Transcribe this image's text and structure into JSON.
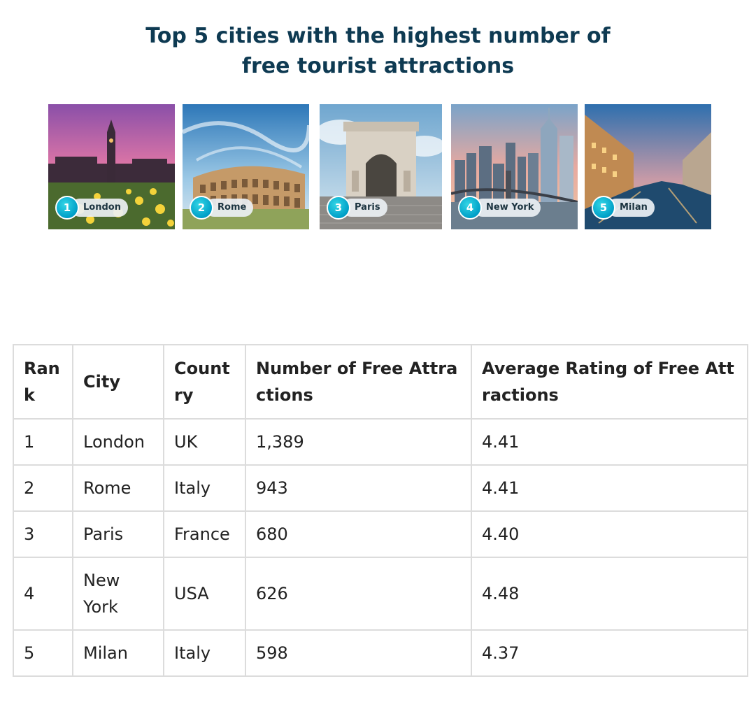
{
  "headline": {
    "line1": "Top 5 cities with the highest number of",
    "line2": "free tourist attractions"
  },
  "gallery": [
    {
      "rank": "1",
      "label": "London",
      "scene": "london-skyline-icon"
    },
    {
      "rank": "2",
      "label": "Rome",
      "scene": "colosseum-icon"
    },
    {
      "rank": "3",
      "label": "Paris",
      "scene": "arc-de-triomphe-icon"
    },
    {
      "rank": "4",
      "label": "New York",
      "scene": "nyc-skyline-icon"
    },
    {
      "rank": "5",
      "label": "Milan",
      "scene": "milan-canal-icon"
    }
  ],
  "table": {
    "headers": [
      "Rank",
      "City",
      "Country",
      "Number of Free Attractions",
      "Average Rating of Free Attractions"
    ],
    "rows": [
      [
        "1",
        "London",
        "UK",
        "1,389",
        "4.41"
      ],
      [
        "2",
        "Rome",
        "Italy",
        "943",
        "4.41"
      ],
      [
        "3",
        "Paris",
        "France",
        "680",
        "4.40"
      ],
      [
        "4",
        "New York",
        "USA",
        "626",
        "4.48"
      ],
      [
        "5",
        "Milan",
        "Italy",
        "598",
        "4.37"
      ]
    ]
  }
}
